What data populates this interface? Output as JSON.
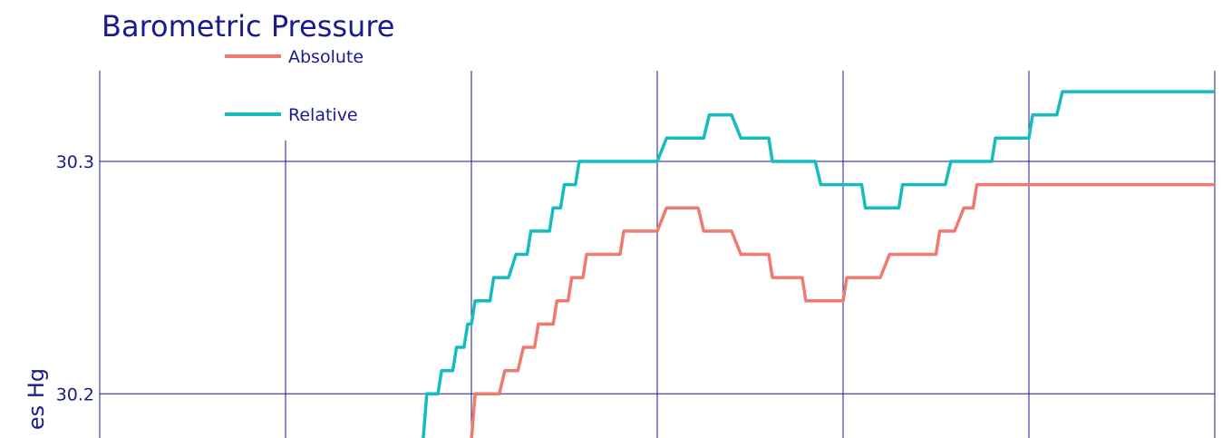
{
  "chart_data": {
    "type": "line",
    "title": "Barometric Pressure",
    "ylabel": "es Hg",
    "xlabel": "",
    "ylim": [
      30.181,
      30.339
    ],
    "yticks": [
      30.2,
      30.3
    ],
    "ytick_labels": [
      "30.2",
      "30.3"
    ],
    "xlim": [
      0,
      600
    ],
    "grid": true,
    "legend_position": "top-left",
    "series": [
      {
        "name": "Absolute",
        "color": "#f07a70",
        "points": [
          [
            200,
            30.18
          ],
          [
            202,
            30.2
          ],
          [
            204,
            30.2
          ],
          [
            215,
            30.2
          ],
          [
            218,
            30.21
          ],
          [
            225,
            30.21
          ],
          [
            228,
            30.22
          ],
          [
            234,
            30.22
          ],
          [
            236,
            30.23
          ],
          [
            244,
            30.23
          ],
          [
            246,
            30.24
          ],
          [
            252,
            30.24
          ],
          [
            254,
            30.25
          ],
          [
            260,
            30.25
          ],
          [
            262,
            30.26
          ],
          [
            280,
            30.26
          ],
          [
            282,
            30.27
          ],
          [
            300,
            30.27
          ],
          [
            305,
            30.28
          ],
          [
            322,
            30.28
          ],
          [
            325,
            30.27
          ],
          [
            340,
            30.27
          ],
          [
            345,
            30.26
          ],
          [
            360,
            30.26
          ],
          [
            362,
            30.25
          ],
          [
            378,
            30.25
          ],
          [
            380,
            30.24
          ],
          [
            400,
            30.24
          ],
          [
            402,
            30.25
          ],
          [
            420,
            30.25
          ],
          [
            425,
            30.26
          ],
          [
            450,
            30.26
          ],
          [
            452,
            30.27
          ],
          [
            460,
            30.27
          ],
          [
            465,
            30.28
          ],
          [
            470,
            30.28
          ],
          [
            472,
            30.29
          ],
          [
            600,
            30.29
          ]
        ]
      },
      {
        "name": "Relative",
        "color": "#14bcc0",
        "points": [
          [
            174,
            30.18
          ],
          [
            176,
            30.2
          ],
          [
            182,
            30.2
          ],
          [
            184,
            30.21
          ],
          [
            190,
            30.21
          ],
          [
            192,
            30.22
          ],
          [
            196,
            30.22
          ],
          [
            198,
            30.23
          ],
          [
            200,
            30.23
          ],
          [
            202,
            30.24
          ],
          [
            210,
            30.24
          ],
          [
            212,
            30.25
          ],
          [
            220,
            30.25
          ],
          [
            224,
            30.26
          ],
          [
            230,
            30.26
          ],
          [
            232,
            30.27
          ],
          [
            242,
            30.27
          ],
          [
            244,
            30.28
          ],
          [
            248,
            30.28
          ],
          [
            250,
            30.29
          ],
          [
            256,
            30.29
          ],
          [
            258,
            30.3
          ],
          [
            300,
            30.3
          ],
          [
            305,
            30.31
          ],
          [
            325,
            30.31
          ],
          [
            328,
            30.32
          ],
          [
            340,
            30.32
          ],
          [
            345,
            30.31
          ],
          [
            360,
            30.31
          ],
          [
            362,
            30.3
          ],
          [
            385,
            30.3
          ],
          [
            388,
            30.29
          ],
          [
            410,
            30.29
          ],
          [
            412,
            30.28
          ],
          [
            430,
            30.28
          ],
          [
            432,
            30.29
          ],
          [
            455,
            30.29
          ],
          [
            458,
            30.3
          ],
          [
            480,
            30.3
          ],
          [
            482,
            30.31
          ],
          [
            500,
            30.31
          ],
          [
            502,
            30.32
          ],
          [
            515,
            30.32
          ],
          [
            518,
            30.33
          ],
          [
            600,
            30.33
          ]
        ]
      }
    ]
  }
}
